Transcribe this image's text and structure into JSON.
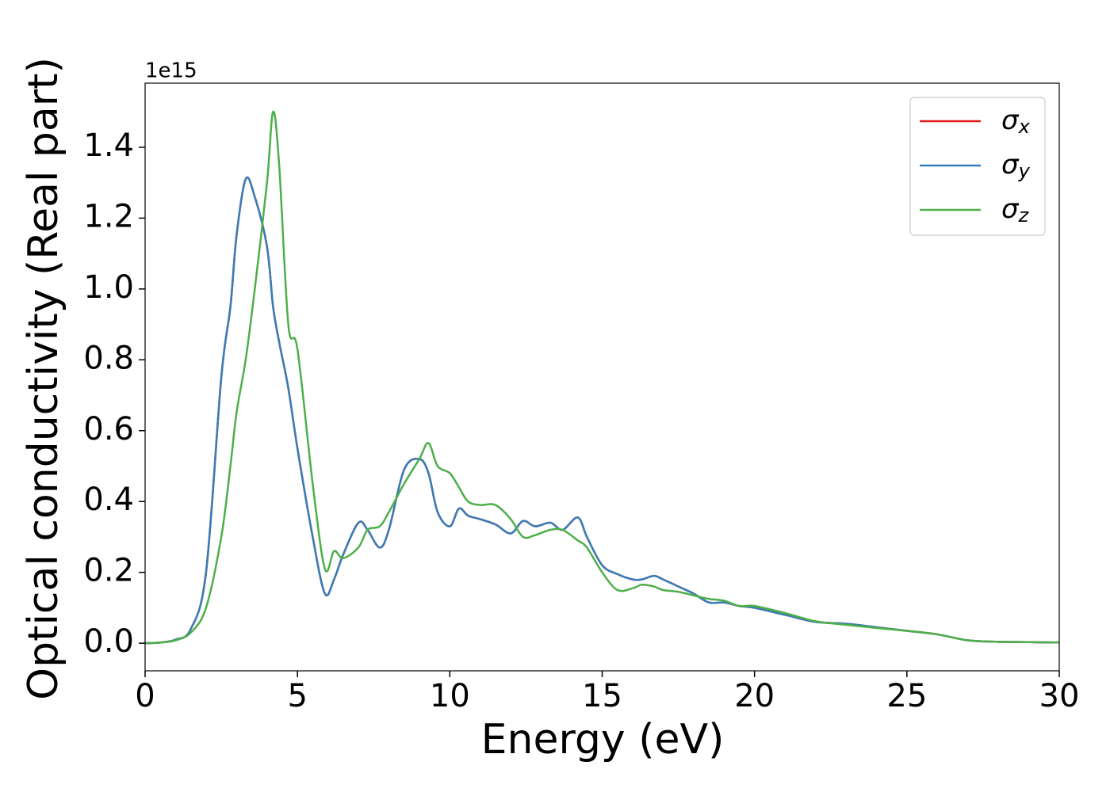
{
  "chart_data": {
    "type": "line",
    "xlabel": "Energy (eV)",
    "ylabel": "Optical conductivity (Real part)",
    "y_offset_label": "1e15",
    "x": [
      0,
      0.5,
      1,
      1.5,
      2,
      2.5,
      2.8,
      3,
      3.3,
      3.6,
      4,
      4.2,
      4.4,
      4.7,
      5,
      5.5,
      5.9,
      6.2,
      6.5,
      7,
      7.3,
      7.7,
      8,
      8.5,
      9,
      9.3,
      9.6,
      10,
      10.3,
      10.6,
      11,
      11.5,
      12,
      12.4,
      12.8,
      13.3,
      13.7,
      14.2,
      14.5,
      15,
      15.5,
      16,
      16.3,
      16.7,
      17,
      17.5,
      18,
      18.5,
      19,
      19.5,
      20,
      21,
      22,
      23,
      24,
      25,
      26,
      27,
      28,
      29,
      30
    ],
    "series": [
      {
        "name": "σx",
        "color": "#e41a1c",
        "values": [
          0,
          0.002,
          0.01,
          0.04,
          0.2,
          0.75,
          0.95,
          1.15,
          1.31,
          1.26,
          1.12,
          0.95,
          0.85,
          0.72,
          0.55,
          0.3,
          0.14,
          0.18,
          0.25,
          0.34,
          0.32,
          0.27,
          0.32,
          0.49,
          0.52,
          0.48,
          0.37,
          0.33,
          0.38,
          0.36,
          0.35,
          0.335,
          0.31,
          0.345,
          0.33,
          0.34,
          0.32,
          0.355,
          0.3,
          0.22,
          0.195,
          0.18,
          0.18,
          0.19,
          0.18,
          0.16,
          0.14,
          0.115,
          0.115,
          0.105,
          0.1,
          0.08,
          0.06,
          0.055,
          0.045,
          0.035,
          0.025,
          0.008,
          0.004,
          0.003,
          0.002
        ]
      },
      {
        "name": "σy",
        "color": "#377eb8",
        "values": [
          0,
          0.002,
          0.01,
          0.04,
          0.2,
          0.75,
          0.95,
          1.15,
          1.31,
          1.26,
          1.12,
          0.95,
          0.85,
          0.72,
          0.55,
          0.3,
          0.14,
          0.18,
          0.25,
          0.34,
          0.32,
          0.27,
          0.32,
          0.49,
          0.52,
          0.48,
          0.37,
          0.33,
          0.38,
          0.36,
          0.35,
          0.335,
          0.31,
          0.345,
          0.33,
          0.34,
          0.32,
          0.355,
          0.3,
          0.22,
          0.195,
          0.18,
          0.18,
          0.19,
          0.18,
          0.16,
          0.14,
          0.115,
          0.115,
          0.105,
          0.1,
          0.08,
          0.06,
          0.055,
          0.045,
          0.035,
          0.025,
          0.008,
          0.004,
          0.003,
          0.002
        ]
      },
      {
        "name": "σz",
        "color": "#4daf4a",
        "values": [
          0,
          0.002,
          0.008,
          0.03,
          0.1,
          0.3,
          0.5,
          0.65,
          0.8,
          1.0,
          1.3,
          1.5,
          1.35,
          0.9,
          0.83,
          0.45,
          0.21,
          0.26,
          0.24,
          0.27,
          0.32,
          0.33,
          0.37,
          0.45,
          0.52,
          0.565,
          0.5,
          0.48,
          0.44,
          0.4,
          0.39,
          0.39,
          0.35,
          0.3,
          0.305,
          0.32,
          0.32,
          0.29,
          0.27,
          0.2,
          0.15,
          0.155,
          0.165,
          0.16,
          0.15,
          0.145,
          0.135,
          0.125,
          0.12,
          0.105,
          0.105,
          0.085,
          0.062,
          0.052,
          0.043,
          0.035,
          0.025,
          0.008,
          0.004,
          0.003,
          0.002
        ]
      }
    ],
    "xlim": [
      0,
      30
    ],
    "xticks": [
      0,
      5,
      10,
      15,
      20,
      25,
      30
    ],
    "ylim": [
      -0.078,
      1.581
    ],
    "yticks": [
      {
        "value": 0,
        "label": "0.0"
      },
      0.2,
      0.4,
      0.6,
      0.8,
      {
        "value": 1,
        "label": "1.0"
      },
      1.2,
      1.4
    ],
    "grid": false,
    "legend": "upper right"
  }
}
